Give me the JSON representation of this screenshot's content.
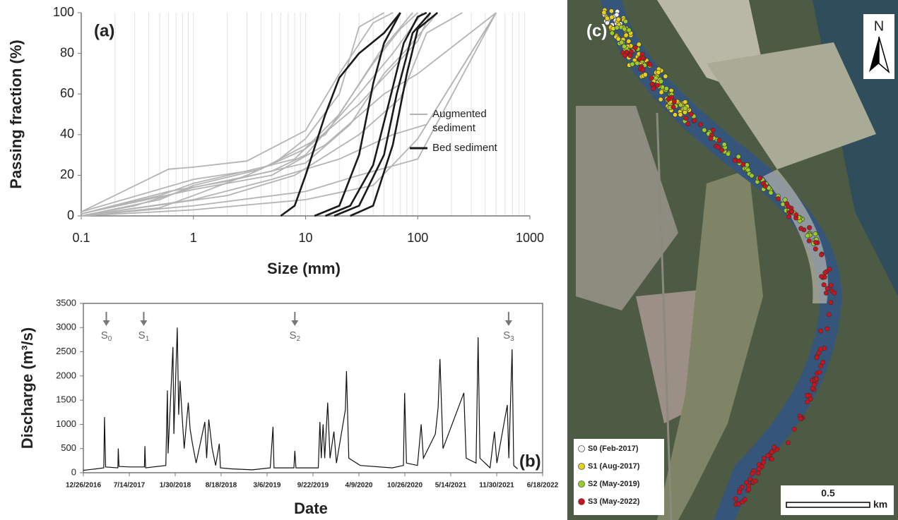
{
  "chart_data": [
    {
      "type": "line",
      "panel_label": "(a)",
      "x_label": "Size (mm)",
      "y_label": "Passing fraction (%)",
      "xscale": "log",
      "xlim": [
        0.1,
        1000
      ],
      "xticks": [
        0.1,
        1,
        10,
        100,
        1000
      ],
      "ylim": [
        0,
        100
      ],
      "yticks": [
        0,
        20,
        40,
        60,
        80,
        100
      ],
      "minor_grid": true,
      "series": [
        {
          "name": "Augmented sediment",
          "color": "#b4b4b4",
          "curves": [
            {
              "x": [
                0.1,
                0.6,
                1,
                3,
                10,
                20,
                40,
                60
              ],
              "values": [
                2,
                23,
                24,
                27,
                42,
                70,
                95,
                100
              ]
            },
            {
              "x": [
                0.1,
                0.5,
                1,
                5,
                10,
                20,
                30,
                50
              ],
              "values": [
                1,
                10,
                16,
                25,
                38,
                60,
                93,
                100
              ]
            },
            {
              "x": [
                0.1,
                0.3,
                1,
                5,
                10,
                30,
                60,
                110
              ],
              "values": [
                0,
                5,
                14,
                22,
                30,
                60,
                80,
                100
              ]
            },
            {
              "x": [
                0.1,
                0.5,
                1,
                3,
                10,
                30,
                100,
                130
              ],
              "values": [
                0,
                4,
                10,
                20,
                33,
                55,
                86,
                100
              ]
            },
            {
              "x": [
                0.1,
                1,
                5,
                15,
                50,
                100,
                500
              ],
              "values": [
                1,
                13,
                20,
                35,
                60,
                70,
                100
              ]
            },
            {
              "x": [
                0.1,
                1,
                5,
                20,
                60,
                120,
                500
              ],
              "values": [
                0,
                8,
                18,
                28,
                40,
                45,
                100
              ]
            },
            {
              "x": [
                0.1,
                1,
                10,
                30,
                100,
                500
              ],
              "values": [
                0,
                5,
                12,
                20,
                28,
                100
              ]
            },
            {
              "x": [
                0.1,
                1,
                10,
                40,
                100,
                500
              ],
              "values": [
                0,
                3,
                8,
                15,
                38,
                100
              ]
            },
            {
              "x": [
                0.1,
                0.6,
                2,
                10,
                25,
                50,
                80,
                150
              ],
              "values": [
                1,
                12,
                17,
                26,
                45,
                70,
                82,
                100
              ]
            },
            {
              "x": [
                0.1,
                0.5,
                1,
                4,
                15,
                40,
                70,
                100
              ],
              "values": [
                0,
                8,
                15,
                23,
                40,
                75,
                92,
                100
              ]
            },
            {
              "x": [
                0.1,
                2,
                8,
                30,
                70,
                120,
                250
              ],
              "values": [
                0,
                10,
                20,
                40,
                58,
                90,
                100
              ]
            },
            {
              "x": [
                0.1,
                1,
                3,
                8,
                20,
                45,
                90
              ],
              "values": [
                2,
                18,
                22,
                28,
                50,
                80,
                100
              ]
            }
          ]
        },
        {
          "name": "Bed sediment",
          "color": "#1a1a1a",
          "curves": [
            {
              "x": [
                6,
                8,
                10,
                15,
                20,
                30,
                50,
                70
              ],
              "values": [
                0,
                5,
                20,
                50,
                68,
                80,
                90,
                100
              ]
            },
            {
              "x": [
                12,
                20,
                30,
                40,
                50,
                70
              ],
              "values": [
                0,
                5,
                30,
                65,
                85,
                100
              ]
            },
            {
              "x": [
                15,
                25,
                40,
                55,
                75,
                100,
                120
              ],
              "values": [
                0,
                5,
                25,
                55,
                85,
                98,
                100
              ]
            },
            {
              "x": [
                18,
                30,
                50,
                65,
                90,
                130
              ],
              "values": [
                0,
                5,
                30,
                60,
                90,
                100
              ]
            },
            {
              "x": [
                25,
                40,
                60,
                80,
                100,
                150
              ],
              "values": [
                0,
                5,
                35,
                70,
                92,
                100
              ]
            }
          ]
        }
      ]
    },
    {
      "type": "line",
      "panel_label": "(b)",
      "x_label": "Date",
      "y_label": "Discharge (m³/s)",
      "xlim": [
        "2016-12-26",
        "2022-06-18"
      ],
      "xticks": [
        {
          "value": "2016-12-26",
          "label": "12/26/2016"
        },
        {
          "value": "2017-07-14",
          "label": "7/14/2017"
        },
        {
          "value": "2018-01-30",
          "label": "1/30/2018"
        },
        {
          "value": "2018-08-18",
          "label": "8/18/2018"
        },
        {
          "value": "2019-03-06",
          "label": "3/6/2019"
        },
        {
          "value": "2019-09-22",
          "label": "9/22/2019"
        },
        {
          "value": "2020-04-09",
          "label": "4/9/2020"
        },
        {
          "value": "2020-10-26",
          "label": "10/26/2020"
        },
        {
          "value": "2021-05-14",
          "label": "5/14/2021"
        },
        {
          "value": "2021-11-30",
          "label": "11/30/2021"
        },
        {
          "value": "2022-06-18",
          "label": "6/18/2022"
        }
      ],
      "ylim": [
        0,
        3500
      ],
      "yticks": [
        0,
        500,
        1000,
        1500,
        2000,
        2500,
        3000,
        3500
      ],
      "frame": true,
      "annotations": [
        {
          "text": "S0",
          "x": "2017-04-05"
        },
        {
          "text": "S1",
          "x": "2017-09-15"
        },
        {
          "text": "S2",
          "x": "2019-07-05"
        },
        {
          "text": "S3",
          "x": "2022-01-21"
        }
      ],
      "series": [
        {
          "color": "#111111",
          "curves": [
            {
              "x": [
                "2016-12-26",
                "2017-02-20",
                "2017-03-25",
                "2017-03-28",
                "2017-04-02",
                "2017-05-25",
                "2017-05-27",
                "2017-05-30",
                "2017-07-15",
                "2017-09-18",
                "2017-09-20",
                "2017-09-23",
                "2017-12-20",
                "2017-12-27",
                "2017-12-30",
                "2018-01-20",
                "2018-01-24",
                "2018-02-08",
                "2018-02-14",
                "2018-02-20",
                "2018-03-02",
                "2018-03-10",
                "2018-03-28",
                "2018-04-05",
                "2018-04-15",
                "2018-05-01",
                "2018-06-08",
                "2018-06-16",
                "2018-06-25",
                "2018-07-10",
                "2018-07-25",
                "2018-08-10",
                "2018-08-15",
                "2018-10-01",
                "2019-01-01",
                "2019-03-20",
                "2019-04-01",
                "2019-04-05",
                "2019-07-01",
                "2019-07-05",
                "2019-07-10",
                "2019-10-15",
                "2019-10-22",
                "2019-10-28",
                "2019-11-05",
                "2019-11-12",
                "2019-11-25",
                "2019-12-05",
                "2019-12-22",
                "2020-01-02",
                "2020-02-10",
                "2020-02-15",
                "2020-02-25",
                "2020-04-15",
                "2020-09-01",
                "2020-10-20",
                "2020-10-25",
                "2020-11-02",
                "2020-12-20",
                "2021-01-05",
                "2021-01-15",
                "2021-03-08",
                "2021-03-20",
                "2021-03-28",
                "2021-04-10",
                "2021-07-10",
                "2021-07-20",
                "2021-09-01",
                "2021-09-10",
                "2021-09-18",
                "2021-11-01",
                "2021-11-20",
                "2021-12-01",
                "2022-01-15",
                "2022-01-22",
                "2022-02-05",
                "2022-02-12",
                "2022-03-01"
              ],
              "values": [
                50,
                80,
                100,
                1150,
                120,
                100,
                500,
                130,
                120,
                120,
                550,
                100,
                150,
                1700,
                400,
                2600,
                800,
                3000,
                1200,
                1900,
                1100,
                500,
                1450,
                900,
                600,
                200,
                1050,
                300,
                1100,
                500,
                150,
                600,
                100,
                80,
                60,
                100,
                950,
                100,
                100,
                450,
                100,
                100,
                1050,
                300,
                1000,
                300,
                1450,
                300,
                850,
                200,
                1300,
                2100,
                300,
                150,
                100,
                150,
                1650,
                200,
                150,
                1000,
                300,
                800,
                1350,
                2350,
                500,
                1650,
                300,
                200,
                2800,
                300,
                100,
                850,
                200,
                1400,
                300,
                2550,
                150,
                80
              ]
            }
          ]
        }
      ]
    }
  ],
  "map": {
    "panel_label": "(c)",
    "north": "N",
    "scale_value": "0.5",
    "scale_unit": "km",
    "legend": [
      {
        "name": "S0 (Feb-2017)",
        "color": "#f2f2f2"
      },
      {
        "name": "S1 (Aug-2017)",
        "color": "#e6d21e"
      },
      {
        "name": "S2 (May-2019)",
        "color": "#9ccc2a"
      },
      {
        "name": "S3 (May-2022)",
        "color": "#c8141e"
      }
    ]
  }
}
